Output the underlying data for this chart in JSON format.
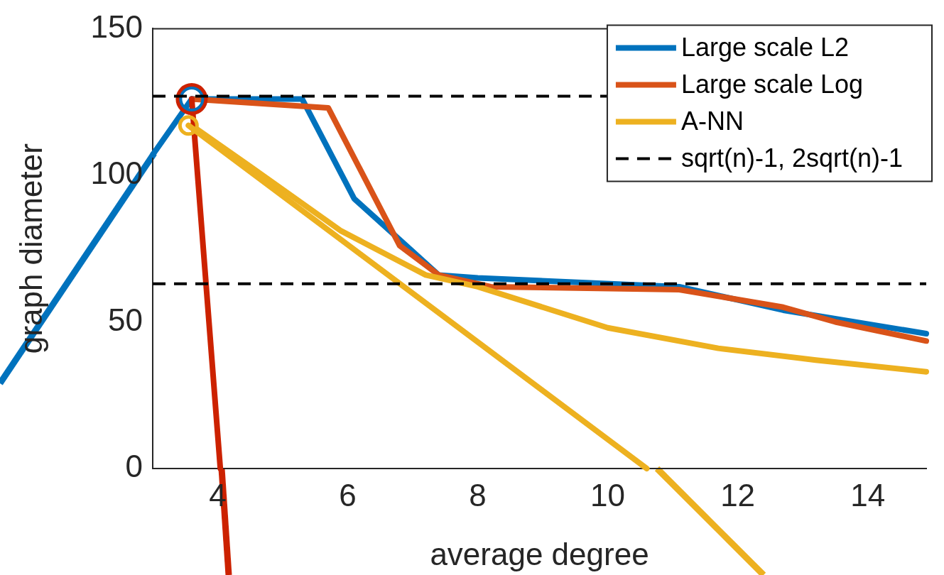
{
  "chart_data": {
    "type": "line",
    "xlabel": "average degree",
    "ylabel": "graph diameter",
    "xlim": [
      3,
      14.9
    ],
    "xticks": [
      4,
      6,
      8,
      10,
      12,
      14
    ],
    "ylim": [
      0,
      150
    ],
    "yticks": [
      0,
      50,
      100,
      150
    ],
    "grid": false,
    "legend": "top right",
    "marker": "none",
    "line_style": "solid",
    "series": [
      {
        "name": "Large scale L2",
        "color": "#0072bd",
        "x": [
          3.6,
          5.3,
          6.1,
          6.8,
          7.4,
          8.0,
          11.1,
          12.7,
          14.9
        ],
        "values": [
          126,
          126,
          92,
          78,
          66,
          65,
          62,
          54,
          46
        ]
      },
      {
        "name": "Large scale Log",
        "color": "#d95319",
        "x": [
          3.6,
          5.7,
          6.8,
          7.4,
          8.2,
          11.1,
          12.7,
          13.5,
          14.9
        ],
        "values": [
          126,
          123,
          76,
          66,
          62,
          61,
          55,
          50,
          43.5
        ]
      },
      {
        "name": "A-NN",
        "color": "#edb120",
        "x": [
          3.6,
          4.5,
          5.9,
          7.2,
          8.0,
          10.0,
          11.7,
          13.2,
          14.9
        ],
        "values": [
          117,
          103,
          81,
          66,
          62,
          48,
          41,
          37,
          33
        ]
      },
      {
        "color": "#0072bd",
        "x": [
          3.6,
          3
        ],
        "values": [
          126,
          107
        ]
      },
      {
        "color": "#cc2200",
        "x": [
          3.6,
          4.04
        ],
        "values": [
          126,
          0
        ]
      },
      {
        "color": "#edb120",
        "x": [
          3.55,
          10.6
        ],
        "values": [
          117,
          0
        ]
      },
      {
        "type": "scatter",
        "marker": "circle",
        "color": "#edb120",
        "x": [
          3.55
        ],
        "values": [
          117
        ]
      },
      {
        "type": "scatter",
        "marker": "circle",
        "color": "#0072bd",
        "x": [
          3.6
        ],
        "values": [
          126
        ]
      },
      {
        "type": "scatter",
        "marker": "circle",
        "color": "#cc2200",
        "x": [
          3.6
        ],
        "values": [
          126
        ]
      }
    ],
    "ref_lines": [
      {
        "axis": "y",
        "value": 127,
        "label": "sqrt(n)-1, 2sqrt(n)-1",
        "line_style": "dashed",
        "color": "#000000"
      },
      {
        "axis": "y",
        "value": 63,
        "line_style": "dashed",
        "color": "#000000"
      }
    ]
  }
}
